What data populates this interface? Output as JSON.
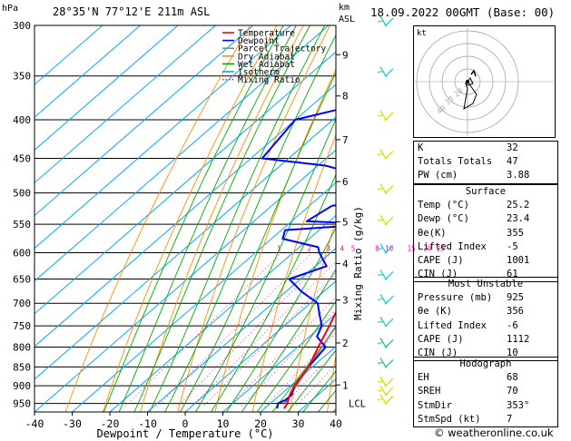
{
  "header": {
    "location": "28°35'N  77°12'E  211m  ASL",
    "datetime": "18.09.2022  00GMT  (Base: 00)",
    "hpa_label": "hPa",
    "km_label": "km",
    "asl_label": "ASL"
  },
  "footer": {
    "copyright": "© weatheronline.co.uk"
  },
  "legend": [
    {
      "label": "Temperature",
      "color": "#ff0000"
    },
    {
      "label": "Dewpoint",
      "color": "#0000ff"
    },
    {
      "label": "Parcel Trajectory",
      "color": "#888888"
    },
    {
      "label": "Dry Adiabat",
      "color": "#ff8c00"
    },
    {
      "label": "Wet Adiabat",
      "color": "#00aa00"
    },
    {
      "label": "Isotherm",
      "color": "#00aaff"
    },
    {
      "label": "Mixing Ratio",
      "color": "#ff00aa"
    }
  ],
  "chart_data": {
    "type": "skew-t",
    "xlabel": "Dewpoint / Temperature (°C)",
    "ylabel_right": "Mixing Ratio (g/kg)",
    "x_ticks": [
      "-40",
      "-30",
      "-20",
      "-10",
      "0",
      "10",
      "20",
      "30",
      "40"
    ],
    "pressure_ticks": [
      300,
      350,
      400,
      450,
      500,
      550,
      600,
      650,
      700,
      750,
      800,
      850,
      900,
      950
    ],
    "km_ticks": [
      {
        "km": "1",
        "p": 898
      },
      {
        "km": "2",
        "p": 790
      },
      {
        "km": "3",
        "p": 693
      },
      {
        "km": "4",
        "p": 620
      },
      {
        "km": "5",
        "p": 546
      },
      {
        "km": "6",
        "p": 483
      },
      {
        "km": "7",
        "p": 425
      },
      {
        "km": "8",
        "p": 372
      },
      {
        "km": "9",
        "p": 328
      }
    ],
    "lcl": {
      "label": "LCL",
      "p": 950
    },
    "mixing_ratio_labels": [
      "1",
      "2",
      "3",
      "4",
      "5",
      "8",
      "10",
      "15",
      "20",
      "25"
    ],
    "temperature": [
      [
        965,
        25.2
      ],
      [
        950,
        24.5
      ],
      [
        925,
        22.5
      ],
      [
        900,
        21
      ],
      [
        850,
        19
      ],
      [
        800,
        15.5
      ],
      [
        750,
        12
      ],
      [
        700,
        8
      ],
      [
        650,
        4
      ],
      [
        600,
        -0.5
      ],
      [
        575,
        -2.5
      ],
      [
        550,
        -5
      ],
      [
        525,
        -8
      ],
      [
        500,
        -11
      ],
      [
        450,
        -16
      ],
      [
        400,
        -22
      ],
      [
        375,
        -26
      ],
      [
        350,
        -30.5
      ],
      [
        340,
        -33
      ]
    ],
    "dewpoint": [
      [
        965,
        23.4
      ],
      [
        950,
        22
      ],
      [
        940,
        23
      ],
      [
        925,
        23
      ],
      [
        900,
        21
      ],
      [
        850,
        19
      ],
      [
        800,
        17.5
      ],
      [
        775,
        12
      ],
      [
        750,
        10
      ],
      [
        725,
        6
      ],
      [
        700,
        2
      ],
      [
        675,
        -6
      ],
      [
        650,
        -13
      ],
      [
        625,
        -7
      ],
      [
        600,
        -13
      ],
      [
        590,
        -15
      ],
      [
        575,
        -27
      ],
      [
        560,
        -29
      ],
      [
        550,
        -8
      ],
      [
        545,
        -26
      ],
      [
        520,
        -24
      ],
      [
        500,
        -2
      ],
      [
        480,
        -20
      ],
      [
        460,
        -38
      ],
      [
        450,
        -57
      ],
      [
        400,
        -60
      ],
      [
        350,
        -25
      ],
      [
        325,
        -60
      ],
      [
        300,
        -23
      ]
    ],
    "parcel": [
      [
        950,
        23.8
      ],
      [
        900,
        21.5
      ],
      [
        850,
        19
      ],
      [
        800,
        16.5
      ],
      [
        750,
        13.8
      ],
      [
        700,
        11
      ],
      [
        650,
        7.8
      ],
      [
        600,
        4.3
      ],
      [
        550,
        0.3
      ],
      [
        500,
        -4.5
      ],
      [
        450,
        -10
      ],
      [
        400,
        -16.5
      ],
      [
        350,
        -25
      ]
    ],
    "wind_barbs": [
      {
        "p": 950,
        "color": "#dddd00"
      },
      {
        "p": 925,
        "color": "#dddd00"
      },
      {
        "p": 900,
        "color": "#dddd00"
      },
      {
        "p": 850,
        "color": "#22cc66"
      },
      {
        "p": 800,
        "color": "#22cc66"
      },
      {
        "p": 750,
        "color": "#22cccc"
      },
      {
        "p": 700,
        "color": "#22cccc"
      },
      {
        "p": 650,
        "color": "#22cccc"
      },
      {
        "p": 600,
        "color": "#22cccc"
      },
      {
        "p": 550,
        "color": "#dddd00"
      },
      {
        "p": 500,
        "color": "#dddd00"
      },
      {
        "p": 450,
        "color": "#dddd00"
      },
      {
        "p": 400,
        "color": "#dddd00"
      },
      {
        "p": 350,
        "color": "#22cccc"
      },
      {
        "p": 300,
        "color": "#22cccc"
      }
    ]
  },
  "hodograph": {
    "unit_label": "kt",
    "ring_labels": [
      "40",
      "30",
      "20"
    ]
  },
  "indices": [
    {
      "label": "K",
      "value": "32"
    },
    {
      "label": "Totals Totals",
      "value": "47"
    },
    {
      "label": "PW (cm)",
      "value": "3.88"
    }
  ],
  "surface": {
    "title": "Surface",
    "rows": [
      {
        "label": "Temp (°C)",
        "value": "25.2"
      },
      {
        "label": "Dewp (°C)",
        "value": "23.4"
      },
      {
        "label": "θe(K)",
        "value": "355"
      },
      {
        "label": "Lifted Index",
        "value": "-5"
      },
      {
        "label": "CAPE (J)",
        "value": "1001"
      },
      {
        "label": "CIN (J)",
        "value": "61"
      }
    ]
  },
  "most_unstable": {
    "title": "Most Unstable",
    "rows": [
      {
        "label": "Pressure (mb)",
        "value": "925"
      },
      {
        "label": "θe (K)",
        "value": "356"
      },
      {
        "label": "Lifted Index",
        "value": "-6"
      },
      {
        "label": "CAPE (J)",
        "value": "1112"
      },
      {
        "label": "CIN (J)",
        "value": "10"
      }
    ]
  },
  "hodograph_table": {
    "title": "Hodograph",
    "rows": [
      {
        "label": "EH",
        "value": "68"
      },
      {
        "label": "SREH",
        "value": "70"
      },
      {
        "label": "StmDir",
        "value": "353°"
      },
      {
        "label": "StmSpd (kt)",
        "value": "7"
      }
    ]
  }
}
